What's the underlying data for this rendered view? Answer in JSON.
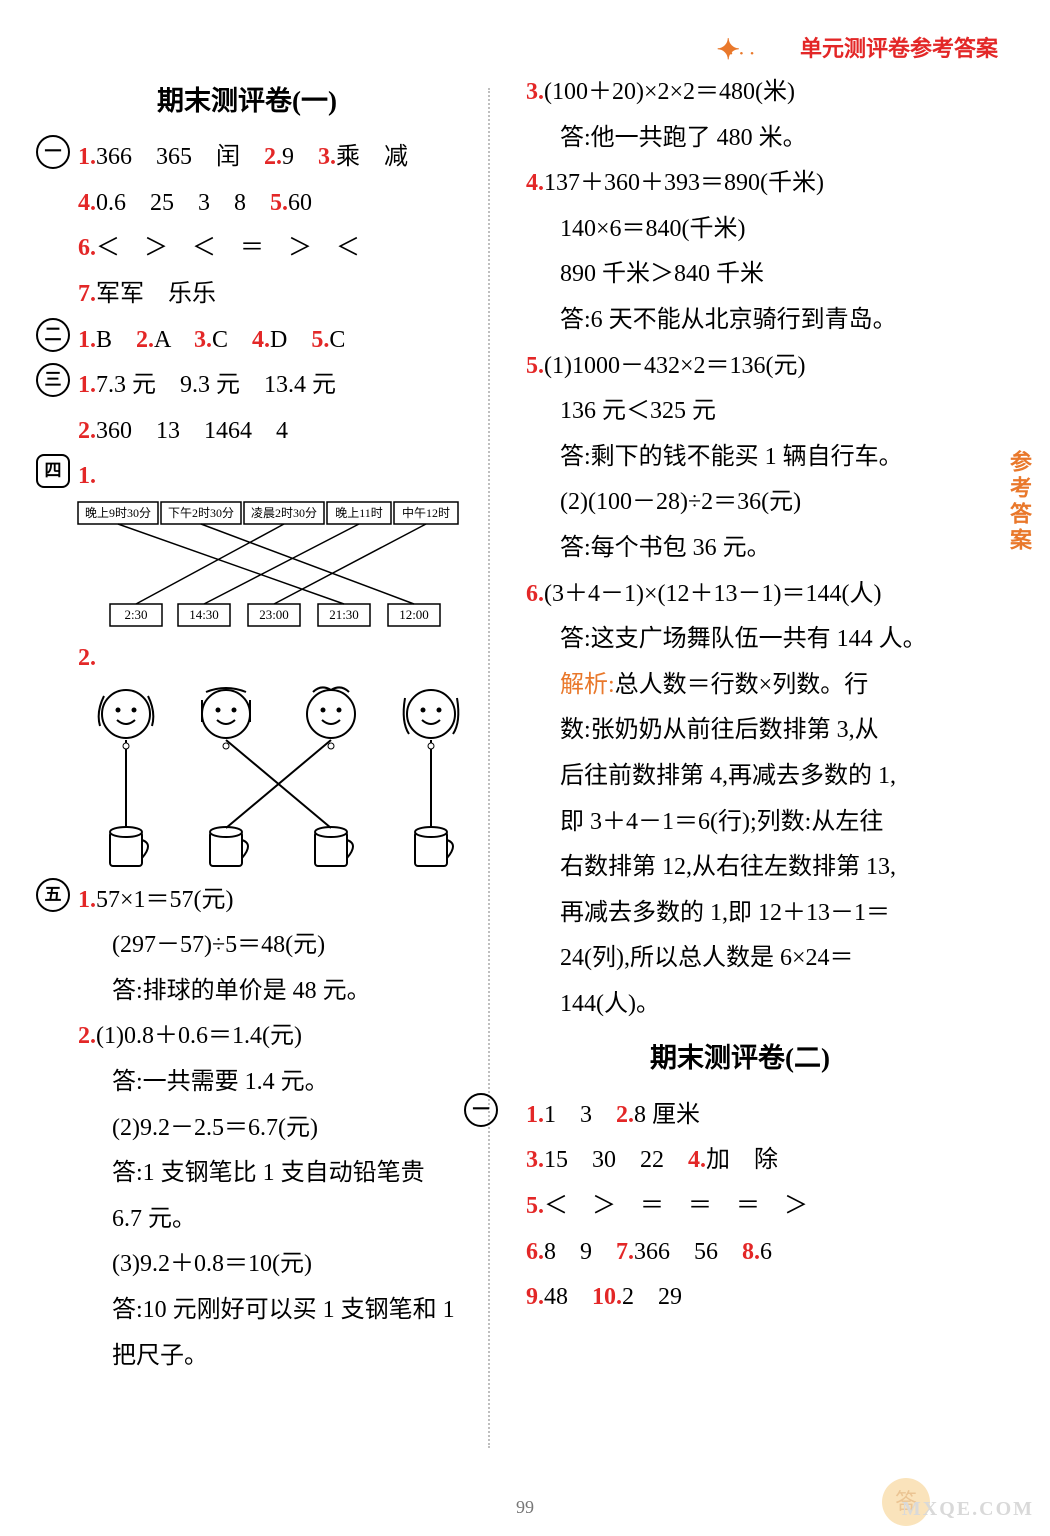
{
  "header": {
    "label": "单元测评卷参考答案"
  },
  "sideTab": "参考答案",
  "pageNum": "99",
  "watermark": "MXQE.COM",
  "wmChar": "答",
  "titles": {
    "exam1": "期末测评卷(一)",
    "exam2": "期末测评卷(二)"
  },
  "markers": {
    "m1": "一",
    "m2": "二",
    "m3": "三",
    "m4": "四",
    "m5": "五"
  },
  "colors": {
    "red": "#e32727",
    "orange": "#e9782b",
    "text": "#000000",
    "divider": "#bfbfbf"
  },
  "left": {
    "q1_1": [
      "1.",
      "366　365　闰　",
      "2.",
      "9　",
      "3.",
      "乘　减"
    ],
    "q1_4": [
      "4.",
      "0.6　25　3　8　",
      "5.",
      "60"
    ],
    "q1_6": [
      "6.",
      "＜　＞　＜　＝　＞　＜"
    ],
    "q1_7": [
      "7.",
      "军军　乐乐"
    ],
    "q2": [
      "1.",
      "B　",
      "2.",
      "A　",
      "3.",
      "C　",
      "4.",
      "D　",
      "5.",
      "C"
    ],
    "q3_1": [
      "1.",
      "7.3 元　9.3 元　13.4 元"
    ],
    "q3_2": [
      "2.",
      "360　13　1464　4"
    ],
    "q4_1num": "1.",
    "q4_boxesTop": [
      "晚上9时30分",
      "下午2时30分",
      "凌晨2时30分",
      "晚上11时",
      "中午12时"
    ],
    "q4_boxesBot": [
      "2:30",
      "14:30",
      "23:00",
      "21:30",
      "12:00"
    ],
    "q4_edges": [
      [
        0,
        2
      ],
      [
        1,
        3
      ],
      [
        2,
        4
      ],
      [
        3,
        0
      ],
      [
        4,
        1
      ]
    ],
    "q4_2num": "2.",
    "q5_1a": [
      "1.",
      "57×1＝57(元)"
    ],
    "q5_1b": "(297－57)÷5＝48(元)",
    "q5_1c": "答:排球的单价是 48 元。",
    "q5_2a": [
      "2.",
      "(1)0.8＋0.6＝1.4(元)"
    ],
    "q5_2b": "答:一共需要 1.4 元。",
    "q5_2c": "(2)9.2－2.5＝6.7(元)",
    "q5_2d": "答:1 支钢笔比 1 支自动铅笔贵",
    "q5_2e": "6.7 元。",
    "q5_2f": "(3)9.2＋0.8＝10(元)",
    "q5_2g": "答:10 元刚好可以买 1 支钢笔和 1",
    "q5_2h": "把尺子。"
  },
  "right": {
    "r3a": [
      "3.",
      "(100＋20)×2×2＝480(米)"
    ],
    "r3b": "答:他一共跑了 480 米。",
    "r4a": [
      "4.",
      "137＋360＋393＝890(千米)"
    ],
    "r4b": "140×6＝840(千米)",
    "r4c": "890 千米＞840 千米",
    "r4d": "答:6 天不能从北京骑行到青岛。",
    "r5a": [
      "5.",
      "(1)1000－432×2＝136(元)"
    ],
    "r5b": "136 元＜325 元",
    "r5c": "答:剩下的钱不能买 1 辆自行车。",
    "r5d": "(2)(100－28)÷2＝36(元)",
    "r5e": "答:每个书包 36 元。",
    "r6a": [
      "6.",
      "(3＋4－1)×(12＋13－1)＝144(人)"
    ],
    "r6b": "答:这支广场舞队伍一共有 144 人。",
    "r6c_lbl": "解析:",
    "r6c": "总人数＝行数×列数。行",
    "r6d": "数:张奶奶从前往后数排第 3,从",
    "r6e": "后往前数排第 4,再减去多数的 1,",
    "r6f": "即 3＋4－1＝6(行);列数:从左往",
    "r6g": "右数排第 12,从右往左数排第 13,",
    "r6h": "再减去多数的 1,即 12＋13－1＝",
    "r6i": "24(列),所以总人数是 6×24＝",
    "r6j": "144(人)。",
    "ex2_1": [
      "1.",
      "1　3　",
      "2.",
      "8 厘米"
    ],
    "ex2_3": [
      "3.",
      "15　30　22　",
      "4.",
      "加　除"
    ],
    "ex2_5": [
      "5.",
      "＜　＞　＝　＝　＝　＞"
    ],
    "ex2_6": [
      "6.",
      "8　9　",
      "7.",
      "366　56　",
      "8.",
      "6"
    ],
    "ex2_9": [
      "9.",
      "48　",
      "10.",
      "2　29"
    ]
  }
}
